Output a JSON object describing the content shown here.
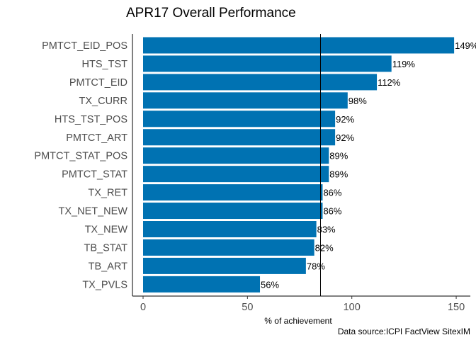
{
  "chart_data": {
    "type": "bar",
    "orientation": "horizontal",
    "title": "APR17 Overall Performance",
    "xlabel": "% of achievement",
    "ylabel": "",
    "caption": "Data source:ICPI FactView SitexIM",
    "xlim": [
      0,
      150
    ],
    "x_ticks": [
      0,
      50,
      100,
      150
    ],
    "x_tick_labels": [
      "0",
      "50",
      "100",
      "150"
    ],
    "reference_line": 85,
    "grid": false,
    "bar_color": "#0072B2",
    "categories": [
      "PMTCT_EID_POS",
      "HTS_TST",
      "PMTCT_EID",
      "TX_CURR",
      "HTS_TST_POS",
      "PMTCT_ART",
      "PMTCT_STAT_POS",
      "PMTCT_STAT",
      "TX_RET",
      "TX_NET_NEW",
      "TX_NEW",
      "TB_STAT",
      "TB_ART",
      "TX_PVLS"
    ],
    "values": [
      149,
      119,
      112,
      98,
      92,
      92,
      89,
      89,
      86,
      86,
      83,
      82,
      78,
      56
    ],
    "value_labels": [
      "149%",
      "119%",
      "112%",
      "98%",
      "92%",
      "92%",
      "89%",
      "89%",
      "86%",
      "86%",
      "83%",
      "82%",
      "78%",
      "56%"
    ]
  }
}
